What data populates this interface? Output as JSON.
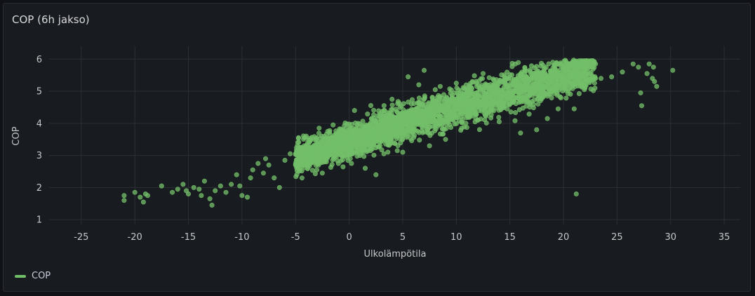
{
  "panel": {
    "title": "COP (6h jakso)"
  },
  "colors": {
    "series": "#73bf69",
    "grid": "#2c2f35",
    "axis_text": "#c6c7c9"
  },
  "chart_data": {
    "type": "scatter",
    "title": "COP (6h jakso)",
    "xlabel": "Ulkolämpötila",
    "ylabel": "COP",
    "xlim": [
      -28,
      36.5
    ],
    "ylim": [
      0.85,
      6.4
    ],
    "xticks": [
      -25,
      -20,
      -15,
      -10,
      -5,
      0,
      5,
      10,
      15,
      20,
      25,
      30,
      35
    ],
    "yticks": [
      1,
      2,
      3,
      4,
      5,
      6
    ],
    "grid": true,
    "legend_position": "bottom-left",
    "series": [
      {
        "name": "COP",
        "points": [
          [
            -21,
            1.6
          ],
          [
            -21,
            1.75
          ],
          [
            -20,
            1.85
          ],
          [
            -19.5,
            1.7
          ],
          [
            -19,
            1.8
          ],
          [
            -19.2,
            1.55
          ],
          [
            -18.8,
            1.75
          ],
          [
            -17.5,
            2.05
          ],
          [
            -16.5,
            1.85
          ],
          [
            -16,
            1.95
          ],
          [
            -15.5,
            2.1
          ],
          [
            -15.2,
            1.9
          ],
          [
            -15,
            1.8
          ],
          [
            -14.5,
            2.0
          ],
          [
            -14,
            1.95
          ],
          [
            -13.8,
            1.75
          ],
          [
            -13.5,
            2.2
          ],
          [
            -13,
            1.65
          ],
          [
            -12.8,
            1.45
          ],
          [
            -12.5,
            1.9
          ],
          [
            -12,
            2.05
          ],
          [
            -11.5,
            1.85
          ],
          [
            -11,
            2.1
          ],
          [
            -10.5,
            2.4
          ],
          [
            -10.2,
            2.05
          ],
          [
            -10,
            1.75
          ],
          [
            -9.5,
            1.7
          ],
          [
            -9.2,
            2.3
          ],
          [
            -9,
            2.55
          ],
          [
            -8.5,
            2.75
          ],
          [
            -8,
            2.45
          ],
          [
            -7.8,
            2.9
          ],
          [
            -7.5,
            2.7
          ],
          [
            -7,
            2.3
          ],
          [
            -6.5,
            2.0
          ],
          [
            -6,
            2.85
          ],
          [
            -5.5,
            3.05
          ],
          [
            -5,
            2.7
          ],
          [
            -4.5,
            3.25
          ],
          [
            -4,
            3.6
          ],
          [
            -3.5,
            2.9
          ],
          [
            -3,
            3.35
          ],
          [
            -2.8,
            3.85
          ],
          [
            -2.5,
            2.45
          ],
          [
            -2,
            3.1
          ],
          [
            -1.5,
            3.95
          ],
          [
            -1,
            2.75
          ],
          [
            -0.5,
            3.75
          ],
          [
            0.5,
            4.4
          ],
          [
            1,
            3.0
          ],
          [
            1.5,
            2.6
          ],
          [
            2,
            3.25
          ],
          [
            2.5,
            2.4
          ],
          [
            3,
            4.05
          ],
          [
            3.5,
            3.7
          ],
          [
            4,
            4.75
          ],
          [
            4.5,
            4.35
          ],
          [
            5,
            3.1
          ],
          [
            5.5,
            5.45
          ],
          [
            6,
            4.2
          ],
          [
            6.5,
            5.2
          ],
          [
            7,
            5.65
          ],
          [
            7.5,
            3.3
          ],
          [
            8,
            4.55
          ],
          [
            8.5,
            5.15
          ],
          [
            9,
            3.5
          ],
          [
            9.5,
            4.7
          ],
          [
            10,
            5.25
          ],
          [
            10.5,
            3.85
          ],
          [
            11,
            4.95
          ],
          [
            11.5,
            5.3
          ],
          [
            12,
            4.1
          ],
          [
            12.5,
            5.55
          ],
          [
            13,
            4.35
          ],
          [
            13.5,
            5.35
          ],
          [
            14,
            4.05
          ],
          [
            14.5,
            5.45
          ],
          [
            15,
            4.6
          ],
          [
            15.5,
            5.85
          ],
          [
            16,
            3.7
          ],
          [
            16.5,
            5.25
          ],
          [
            17,
            4.95
          ],
          [
            17.5,
            3.8
          ],
          [
            18,
            5.55
          ],
          [
            18.5,
            4.15
          ],
          [
            19,
            5.9
          ],
          [
            19.5,
            4.45
          ],
          [
            20,
            5.75
          ],
          [
            20.5,
            5.3
          ],
          [
            21,
            4.45
          ],
          [
            21.5,
            5.95
          ],
          [
            22,
            5.1
          ],
          [
            22.5,
            5.55
          ],
          [
            23,
            5.85
          ],
          [
            23.5,
            5.4
          ],
          [
            24.5,
            5.45
          ],
          [
            25.5,
            5.6
          ],
          [
            26.5,
            5.85
          ],
          [
            27,
            5.75
          ],
          [
            27.3,
            4.55
          ],
          [
            27.2,
            4.95
          ],
          [
            27.8,
            5.55
          ],
          [
            28,
            5.85
          ],
          [
            28.3,
            5.4
          ],
          [
            28.5,
            5.3
          ],
          [
            28.7,
            5.15
          ],
          [
            28.4,
            5.75
          ],
          [
            30.2,
            5.65
          ],
          [
            21.2,
            1.8
          ]
        ]
      }
    ]
  },
  "legend": {
    "label": "COP"
  }
}
